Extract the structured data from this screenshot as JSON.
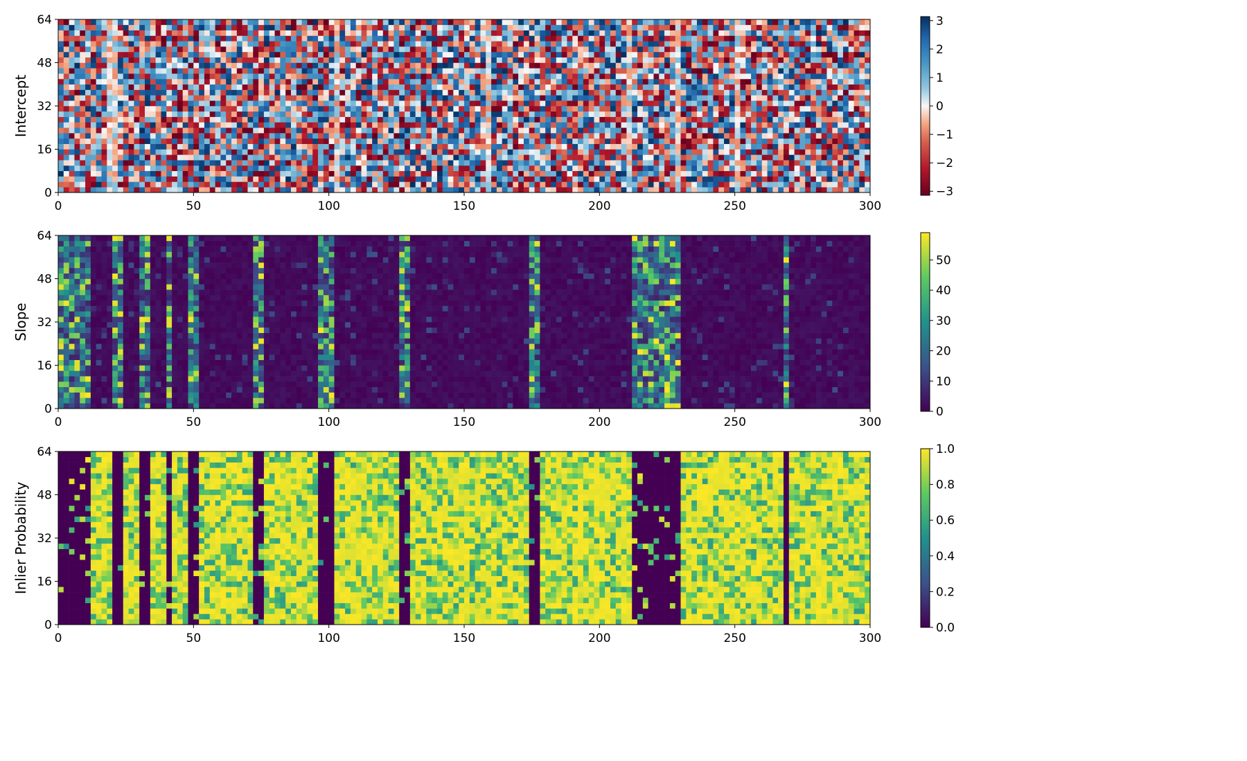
{
  "chart_data": [
    {
      "type": "heatmap",
      "ylabel": "Intercept",
      "xlim": [
        0,
        300
      ],
      "ylim": [
        0,
        64
      ],
      "x_ticks": [
        "0",
        "50",
        "100",
        "150",
        "200",
        "250",
        "300"
      ],
      "y_ticks": [
        "0",
        "16",
        "32",
        "48",
        "64"
      ],
      "colormap": "RdBu",
      "colorbar": {
        "min": -3.14,
        "max": 3.14,
        "ticks": [
          3,
          2,
          1,
          0,
          -1,
          -2,
          -3
        ],
        "tick_labels": [
          "3",
          "2",
          "1",
          "0",
          "−1",
          "−2",
          "−3"
        ]
      },
      "grid_shape": [
        64,
        300
      ],
      "value_distribution": "uniform noise across full range; paler vertical bands near columns 18-20, 103, 158, 210, 228, 250"
    },
    {
      "type": "heatmap",
      "ylabel": "Slope",
      "xlim": [
        0,
        300
      ],
      "ylim": [
        0,
        64
      ],
      "x_ticks": [
        "0",
        "50",
        "100",
        "150",
        "200",
        "250",
        "300"
      ],
      "y_ticks": [
        "0",
        "16",
        "32",
        "48",
        "64"
      ],
      "colormap": "viridis",
      "colorbar": {
        "min": 0,
        "max": 59,
        "ticks": [
          50,
          40,
          30,
          20,
          10,
          0
        ],
        "tick_labels": [
          "50",
          "40",
          "30",
          "20",
          "10",
          "0"
        ]
      },
      "grid_shape": [
        64,
        300
      ],
      "high_value_column_bands": [
        [
          0,
          9
        ],
        [
          20,
          21
        ],
        [
          30,
          31
        ],
        [
          39,
          39
        ],
        [
          48,
          49
        ],
        [
          71,
          74
        ],
        [
          95,
          96
        ],
        [
          98,
          99
        ],
        [
          125,
          127
        ],
        [
          173,
          175
        ],
        [
          212,
          227
        ],
        [
          268,
          268
        ]
      ],
      "background_value": 2
    },
    {
      "type": "heatmap",
      "ylabel": "Inlier Probability",
      "xlim": [
        0,
        300
      ],
      "ylim": [
        0,
        64
      ],
      "x_ticks": [
        "0",
        "50",
        "100",
        "150",
        "200",
        "250",
        "300"
      ],
      "y_ticks": [
        "0",
        "16",
        "32",
        "48",
        "64"
      ],
      "colormap": "viridis",
      "colorbar": {
        "min": 0.0,
        "max": 1.0,
        "ticks": [
          1.0,
          0.8,
          0.6,
          0.4,
          0.2,
          0.0
        ],
        "tick_labels": [
          "1.0",
          "0.8",
          "0.6",
          "0.4",
          "0.2",
          "0.0"
        ]
      },
      "grid_shape": [
        64,
        300
      ],
      "low_value_column_bands": [
        [
          0,
          9
        ],
        [
          20,
          21
        ],
        [
          30,
          31
        ],
        [
          39,
          39
        ],
        [
          48,
          49
        ],
        [
          71,
          74
        ],
        [
          95,
          96
        ],
        [
          98,
          99
        ],
        [
          125,
          127
        ],
        [
          173,
          175
        ],
        [
          212,
          227
        ],
        [
          268,
          268
        ]
      ],
      "background_value": 0.95
    }
  ]
}
